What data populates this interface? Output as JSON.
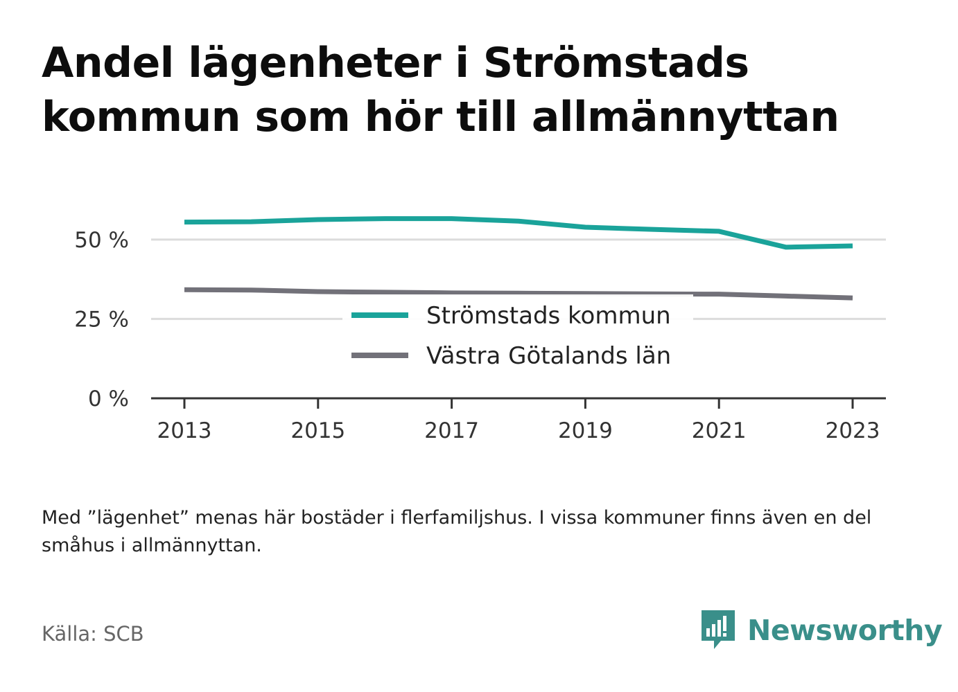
{
  "title": "Andel lägenheter i Strömstads kommun som hör till allmännyttan",
  "note": "Med ”lägenhet” menas här bostäder i flerfamiljshus. I vissa kommuner finns även en del småhus i allmännyttan.",
  "source": "Källa: SCB",
  "brand": {
    "name": "Newsworthy",
    "icon": "newsworthy-logo-icon",
    "color": "#3a8f8a"
  },
  "chart_data": {
    "type": "line",
    "x": [
      2013,
      2014,
      2015,
      2016,
      2017,
      2018,
      2019,
      2020,
      2021,
      2022,
      2023
    ],
    "x_ticks": [
      "2013",
      "2015",
      "2017",
      "2019",
      "2021",
      "2023"
    ],
    "y_ticks": [
      {
        "value": 0,
        "label": "0 %"
      },
      {
        "value": 25,
        "label": "25 %"
      },
      {
        "value": 50,
        "label": "50 %"
      }
    ],
    "ylim": [
      0,
      60
    ],
    "grid": true,
    "legend_position": "center",
    "series": [
      {
        "name": "Strömstads kommun",
        "color": "#1aa39a",
        "values": [
          55.5,
          55.6,
          56.3,
          56.6,
          56.6,
          55.8,
          53.9,
          53.2,
          52.6,
          47.6,
          48.0
        ]
      },
      {
        "name": "Västra Götalands län",
        "color": "#727179",
        "values": [
          34.2,
          34.1,
          33.6,
          33.4,
          33.2,
          33.1,
          33.0,
          32.9,
          32.8,
          32.2,
          31.6
        ]
      }
    ]
  }
}
